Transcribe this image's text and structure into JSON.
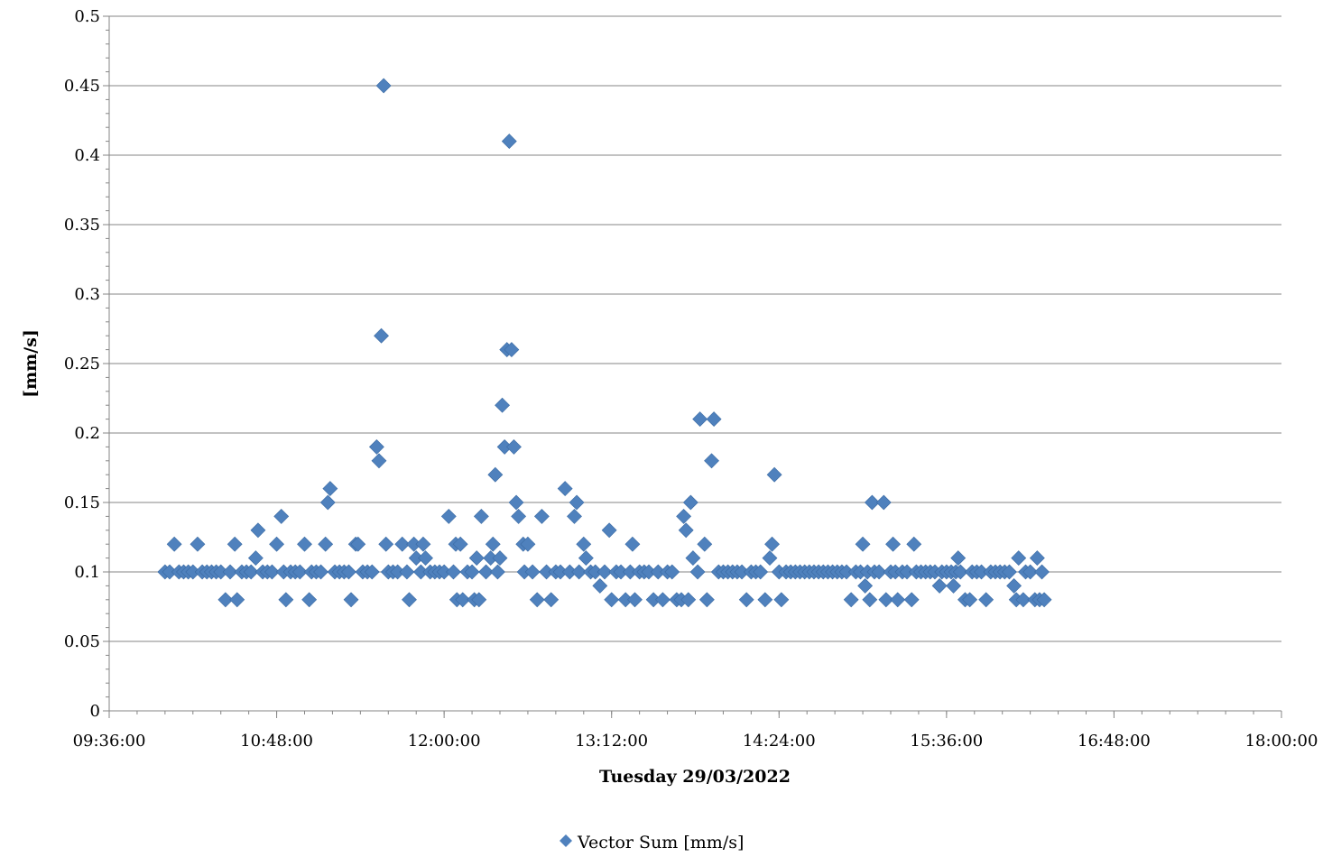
{
  "chart_data": {
    "type": "scatter",
    "xlabel": "Tuesday 29/03/2022",
    "ylabel": "[mm/s]",
    "xlim": [
      "09:36:00",
      "18:00:00"
    ],
    "ylim": [
      0,
      0.5
    ],
    "x_ticks": [
      "09:36:00",
      "10:48:00",
      "12:00:00",
      "13:12:00",
      "14:24:00",
      "15:36:00",
      "16:48:00",
      "18:00:00"
    ],
    "y_ticks": [
      "0",
      "0.05",
      "0.1",
      "0.15",
      "0.2",
      "0.25",
      "0.3",
      "0.35",
      "0.4",
      "0.45",
      "0.5"
    ],
    "grid": "horizontal",
    "legend_position": "bottom",
    "color": "#4f81bd",
    "series": [
      {
        "name": "Vector Sum [mm/s]",
        "points": [
          [
            "10:00:00",
            0.1
          ],
          [
            "10:02:00",
            0.1
          ],
          [
            "10:04:00",
            0.12
          ],
          [
            "10:06:00",
            0.1
          ],
          [
            "10:08:00",
            0.1
          ],
          [
            "10:10:00",
            0.1
          ],
          [
            "10:12:00",
            0.1
          ],
          [
            "10:14:00",
            0.12
          ],
          [
            "10:16:00",
            0.1
          ],
          [
            "10:18:00",
            0.1
          ],
          [
            "10:20:00",
            0.1
          ],
          [
            "10:22:00",
            0.1
          ],
          [
            "10:24:00",
            0.1
          ],
          [
            "10:26:00",
            0.08
          ],
          [
            "10:28:00",
            0.1
          ],
          [
            "10:30:00",
            0.12
          ],
          [
            "10:31:00",
            0.08
          ],
          [
            "10:33:00",
            0.1
          ],
          [
            "10:35:00",
            0.1
          ],
          [
            "10:37:00",
            0.1
          ],
          [
            "10:39:00",
            0.11
          ],
          [
            "10:40:00",
            0.13
          ],
          [
            "10:42:00",
            0.1
          ],
          [
            "10:44:00",
            0.1
          ],
          [
            "10:46:00",
            0.1
          ],
          [
            "10:48:00",
            0.12
          ],
          [
            "10:50:00",
            0.14
          ],
          [
            "10:51:00",
            0.1
          ],
          [
            "10:52:00",
            0.08
          ],
          [
            "10:54:00",
            0.1
          ],
          [
            "10:56:00",
            0.1
          ],
          [
            "10:58:00",
            0.1
          ],
          [
            "11:00:00",
            0.12
          ],
          [
            "11:02:00",
            0.08
          ],
          [
            "11:03:00",
            0.1
          ],
          [
            "11:05:00",
            0.1
          ],
          [
            "11:07:00",
            0.1
          ],
          [
            "11:09:00",
            0.12
          ],
          [
            "11:10:00",
            0.15
          ],
          [
            "11:11:00",
            0.16
          ],
          [
            "11:13:00",
            0.1
          ],
          [
            "11:15:00",
            0.1
          ],
          [
            "11:17:00",
            0.1
          ],
          [
            "11:19:00",
            0.1
          ],
          [
            "11:20:00",
            0.08
          ],
          [
            "11:22:00",
            0.12
          ],
          [
            "11:23:00",
            0.12
          ],
          [
            "11:25:00",
            0.1
          ],
          [
            "11:27:00",
            0.1
          ],
          [
            "11:29:00",
            0.1
          ],
          [
            "11:31:00",
            0.19
          ],
          [
            "11:32:00",
            0.18
          ],
          [
            "11:33:00",
            0.27
          ],
          [
            "11:34:00",
            0.45
          ],
          [
            "11:35:00",
            0.12
          ],
          [
            "11:36:00",
            0.1
          ],
          [
            "11:38:00",
            0.1
          ],
          [
            "11:40:00",
            0.1
          ],
          [
            "11:42:00",
            0.12
          ],
          [
            "11:44:00",
            0.1
          ],
          [
            "11:45:00",
            0.08
          ],
          [
            "11:47:00",
            0.12
          ],
          [
            "11:48:00",
            0.11
          ],
          [
            "11:50:00",
            0.1
          ],
          [
            "11:51:00",
            0.12
          ],
          [
            "11:52:00",
            0.11
          ],
          [
            "11:54:00",
            0.1
          ],
          [
            "11:56:00",
            0.1
          ],
          [
            "11:58:00",
            0.1
          ],
          [
            "12:00:00",
            0.1
          ],
          [
            "12:02:00",
            0.14
          ],
          [
            "12:04:00",
            0.1
          ],
          [
            "12:05:00",
            0.12
          ],
          [
            "12:05:30",
            0.08
          ],
          [
            "12:07:00",
            0.12
          ],
          [
            "12:08:00",
            0.08
          ],
          [
            "12:10:00",
            0.1
          ],
          [
            "12:12:00",
            0.1
          ],
          [
            "12:13:00",
            0.08
          ],
          [
            "12:14:00",
            0.11
          ],
          [
            "12:15:00",
            0.08
          ],
          [
            "12:16:00",
            0.14
          ],
          [
            "12:18:00",
            0.1
          ],
          [
            "12:20:00",
            0.11
          ],
          [
            "12:21:00",
            0.12
          ],
          [
            "12:22:00",
            0.17
          ],
          [
            "12:23:00",
            0.1
          ],
          [
            "12:24:00",
            0.11
          ],
          [
            "12:25:00",
            0.22
          ],
          [
            "12:26:00",
            0.19
          ],
          [
            "12:27:00",
            0.26
          ],
          [
            "12:28:00",
            0.41
          ],
          [
            "12:29:00",
            0.26
          ],
          [
            "12:30:00",
            0.19
          ],
          [
            "12:31:00",
            0.15
          ],
          [
            "12:32:00",
            0.14
          ],
          [
            "12:34:00",
            0.12
          ],
          [
            "12:34:30",
            0.1
          ],
          [
            "12:36:00",
            0.12
          ],
          [
            "12:38:00",
            0.1
          ],
          [
            "12:40:00",
            0.08
          ],
          [
            "12:42:00",
            0.14
          ],
          [
            "12:44:00",
            0.1
          ],
          [
            "12:46:00",
            0.08
          ],
          [
            "12:48:00",
            0.1
          ],
          [
            "12:50:00",
            0.1
          ],
          [
            "12:52:00",
            0.16
          ],
          [
            "12:54:00",
            0.1
          ],
          [
            "12:56:00",
            0.14
          ],
          [
            "12:57:00",
            0.15
          ],
          [
            "12:58:00",
            0.1
          ],
          [
            "13:00:00",
            0.12
          ],
          [
            "13:01:00",
            0.11
          ],
          [
            "13:03:00",
            0.1
          ],
          [
            "13:05:00",
            0.1
          ],
          [
            "13:07:00",
            0.09
          ],
          [
            "13:09:00",
            0.1
          ],
          [
            "13:11:00",
            0.13
          ],
          [
            "13:12:00",
            0.08
          ],
          [
            "13:14:00",
            0.1
          ],
          [
            "13:16:00",
            0.1
          ],
          [
            "13:18:00",
            0.08
          ],
          [
            "13:20:00",
            0.1
          ],
          [
            "13:21:00",
            0.12
          ],
          [
            "13:22:00",
            0.08
          ],
          [
            "13:24:00",
            0.1
          ],
          [
            "13:26:00",
            0.1
          ],
          [
            "13:28:00",
            0.1
          ],
          [
            "13:30:00",
            0.08
          ],
          [
            "13:32:00",
            0.1
          ],
          [
            "13:34:00",
            0.08
          ],
          [
            "13:36:00",
            0.1
          ],
          [
            "13:38:00",
            0.1
          ],
          [
            "13:40:00",
            0.08
          ],
          [
            "13:42:00",
            0.08
          ],
          [
            "13:43:00",
            0.14
          ],
          [
            "13:44:00",
            0.13
          ],
          [
            "13:45:00",
            0.08
          ],
          [
            "13:46:00",
            0.15
          ],
          [
            "13:47:00",
            0.11
          ],
          [
            "13:49:00",
            0.1
          ],
          [
            "13:50:00",
            0.21
          ],
          [
            "13:52:00",
            0.12
          ],
          [
            "13:53:00",
            0.08
          ],
          [
            "13:55:00",
            0.18
          ],
          [
            "13:56:00",
            0.21
          ],
          [
            "13:58:00",
            0.1
          ],
          [
            "14:00:00",
            0.1
          ],
          [
            "14:02:00",
            0.1
          ],
          [
            "14:04:00",
            0.1
          ],
          [
            "14:06:00",
            0.1
          ],
          [
            "14:08:00",
            0.1
          ],
          [
            "14:10:00",
            0.08
          ],
          [
            "14:12:00",
            0.1
          ],
          [
            "14:14:00",
            0.1
          ],
          [
            "14:16:00",
            0.1
          ],
          [
            "14:18:00",
            0.08
          ],
          [
            "14:20:00",
            0.11
          ],
          [
            "14:21:00",
            0.12
          ],
          [
            "14:22:00",
            0.17
          ],
          [
            "14:24:00",
            0.1
          ],
          [
            "14:25:00",
            0.08
          ],
          [
            "14:27:00",
            0.1
          ],
          [
            "14:29:00",
            0.1
          ],
          [
            "14:31:00",
            0.1
          ],
          [
            "14:33:00",
            0.1
          ],
          [
            "14:35:00",
            0.1
          ],
          [
            "14:37:00",
            0.1
          ],
          [
            "14:39:00",
            0.1
          ],
          [
            "14:41:00",
            0.1
          ],
          [
            "14:43:00",
            0.1
          ],
          [
            "14:45:00",
            0.1
          ],
          [
            "14:47:00",
            0.1
          ],
          [
            "14:49:00",
            0.1
          ],
          [
            "14:51:00",
            0.1
          ],
          [
            "14:53:00",
            0.1
          ],
          [
            "14:55:00",
            0.08
          ],
          [
            "14:57:00",
            0.1
          ],
          [
            "14:59:00",
            0.1
          ],
          [
            "15:00:00",
            0.12
          ],
          [
            "15:01:00",
            0.09
          ],
          [
            "15:02:00",
            0.1
          ],
          [
            "15:03:00",
            0.08
          ],
          [
            "15:04:00",
            0.15
          ],
          [
            "15:05:00",
            0.1
          ],
          [
            "15:07:00",
            0.1
          ],
          [
            "15:09:00",
            0.15
          ],
          [
            "15:10:00",
            0.08
          ],
          [
            "15:12:00",
            0.1
          ],
          [
            "15:13:00",
            0.12
          ],
          [
            "15:14:00",
            0.1
          ],
          [
            "15:15:00",
            0.08
          ],
          [
            "15:17:00",
            0.1
          ],
          [
            "15:19:00",
            0.1
          ],
          [
            "15:21:00",
            0.08
          ],
          [
            "15:22:00",
            0.12
          ],
          [
            "15:23:00",
            0.1
          ],
          [
            "15:25:00",
            0.1
          ],
          [
            "15:27:00",
            0.1
          ],
          [
            "15:29:00",
            0.1
          ],
          [
            "15:31:00",
            0.1
          ],
          [
            "15:33:00",
            0.09
          ],
          [
            "15:34:00",
            0.1
          ],
          [
            "15:36:00",
            0.1
          ],
          [
            "15:38:00",
            0.1
          ],
          [
            "15:39:00",
            0.09
          ],
          [
            "15:40:00",
            0.1
          ],
          [
            "15:41:00",
            0.11
          ],
          [
            "15:42:00",
            0.1
          ],
          [
            "15:44:00",
            0.08
          ],
          [
            "15:46:00",
            0.08
          ],
          [
            "15:47:00",
            0.1
          ],
          [
            "15:49:00",
            0.1
          ],
          [
            "15:51:00",
            0.1
          ],
          [
            "15:53:00",
            0.08
          ],
          [
            "15:55:00",
            0.1
          ],
          [
            "15:57:00",
            0.1
          ],
          [
            "15:59:00",
            0.1
          ],
          [
            "16:01:00",
            0.1
          ],
          [
            "16:03:00",
            0.1
          ],
          [
            "16:05:00",
            0.09
          ],
          [
            "16:06:00",
            0.08
          ],
          [
            "16:07:00",
            0.11
          ],
          [
            "16:09:00",
            0.08
          ],
          [
            "16:10:00",
            0.1
          ],
          [
            "16:12:00",
            0.1
          ],
          [
            "16:14:00",
            0.08
          ],
          [
            "16:15:00",
            0.11
          ],
          [
            "16:16:00",
            0.08
          ],
          [
            "16:17:00",
            0.1
          ],
          [
            "16:18:00",
            0.08
          ]
        ]
      }
    ]
  }
}
